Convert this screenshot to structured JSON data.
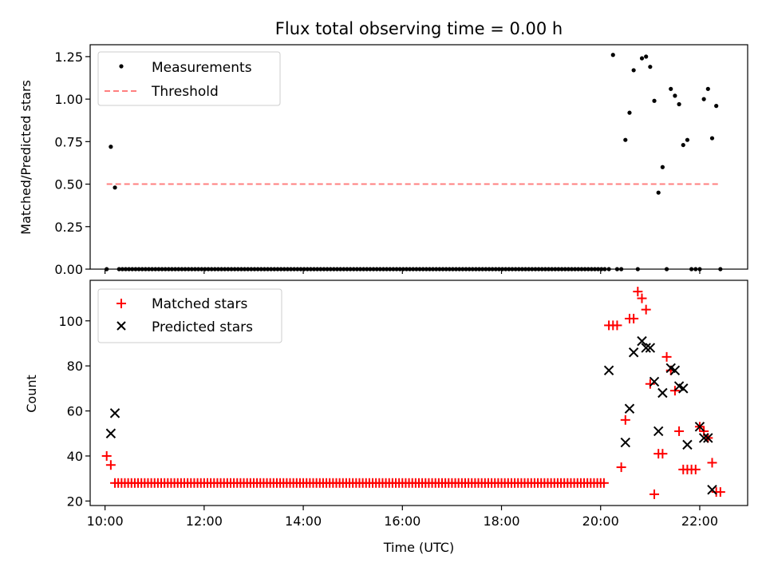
{
  "chart_data": [
    {
      "type": "scatter",
      "title": "Flux total observing time = 0.00 h",
      "xlabel": "",
      "ylabel": "Matched/Predicted stars",
      "xlim": [
        "09:42",
        "22:58"
      ],
      "ylim": [
        0,
        1.32
      ],
      "yticks": [
        0.0,
        0.25,
        0.5,
        0.75,
        1.0,
        1.25
      ],
      "ytick_labels": [
        "0.00",
        "0.25",
        "0.50",
        "0.75",
        "1.00",
        "1.25"
      ],
      "legend_position": "top-left",
      "threshold": {
        "name": "Threshold",
        "value": 0.5,
        "x_range": [
          "10:02",
          "22:22"
        ],
        "color": "#ff7f7f",
        "style": "dashed"
      },
      "series": [
        {
          "name": "Measurements",
          "color": "#000000",
          "marker": "dot",
          "points": [
            [
              "10:02",
              0.0
            ],
            [
              "10:07",
              0.72
            ],
            [
              "10:12",
              0.48
            ],
            [
              "20:05",
              0.0
            ],
            [
              "20:10",
              0.0
            ],
            [
              "20:15",
              1.26
            ],
            [
              "20:20",
              0.0
            ],
            [
              "20:25",
              0.0
            ],
            [
              "20:30",
              0.76
            ],
            [
              "20:35",
              0.92
            ],
            [
              "20:40",
              1.17
            ],
            [
              "20:45",
              0.0
            ],
            [
              "20:50",
              1.24
            ],
            [
              "20:55",
              1.25
            ],
            [
              "21:00",
              1.19
            ],
            [
              "21:05",
              0.99
            ],
            [
              "21:10",
              0.45
            ],
            [
              "21:15",
              0.6
            ],
            [
              "21:20",
              0.0
            ],
            [
              "21:25",
              1.06
            ],
            [
              "21:30",
              1.02
            ],
            [
              "21:35",
              0.97
            ],
            [
              "21:40",
              0.73
            ],
            [
              "21:45",
              0.76
            ],
            [
              "21:50",
              0.0
            ],
            [
              "21:55",
              0.0
            ],
            [
              "22:00",
              0.0
            ],
            [
              "22:05",
              1.0
            ],
            [
              "22:10",
              1.06
            ],
            [
              "22:15",
              0.77
            ],
            [
              "22:20",
              0.96
            ],
            [
              "22:25",
              0.0
            ]
          ],
          "zero_run": {
            "from": "10:17",
            "to": "20:02",
            "step_minutes": 4,
            "value": 0.0
          }
        }
      ]
    },
    {
      "type": "scatter",
      "title": "",
      "xlabel": "Time (UTC)",
      "ylabel": "Count",
      "xlim": [
        "09:42",
        "22:58"
      ],
      "ylim": [
        18,
        118
      ],
      "yticks": [
        20,
        40,
        60,
        80,
        100
      ],
      "ytick_labels": [
        "20",
        "40",
        "60",
        "80",
        "100"
      ],
      "xticks": [
        "10:00",
        "12:00",
        "14:00",
        "16:00",
        "18:00",
        "20:00",
        "22:00"
      ],
      "xtick_labels": [
        "10:00",
        "12:00",
        "14:00",
        "16:00",
        "18:00",
        "20:00",
        "22:00"
      ],
      "legend_position": "top-left",
      "series": [
        {
          "name": "Matched stars",
          "color": "#ff0000",
          "marker": "plus",
          "points": [
            [
              "10:02",
              40
            ],
            [
              "10:07",
              36
            ],
            [
              "20:10",
              98
            ],
            [
              "20:15",
              98
            ],
            [
              "20:20",
              98
            ],
            [
              "20:25",
              35
            ],
            [
              "20:30",
              56
            ],
            [
              "20:35",
              101
            ],
            [
              "20:40",
              101
            ],
            [
              "20:45",
              113
            ],
            [
              "20:50",
              110
            ],
            [
              "20:55",
              105
            ],
            [
              "21:00",
              72
            ],
            [
              "21:05",
              23
            ],
            [
              "21:10",
              41
            ],
            [
              "21:15",
              41
            ],
            [
              "21:20",
              84
            ],
            [
              "21:25",
              78
            ],
            [
              "21:30",
              69
            ],
            [
              "21:35",
              51
            ],
            [
              "21:40",
              34
            ],
            [
              "21:45",
              34
            ],
            [
              "21:50",
              34
            ],
            [
              "21:55",
              34
            ],
            [
              "22:00",
              53
            ],
            [
              "22:05",
              51
            ],
            [
              "22:10",
              48
            ],
            [
              "22:15",
              37
            ],
            [
              "22:20",
              24
            ],
            [
              "22:25",
              24
            ]
          ],
          "flat_run": {
            "from": "10:12",
            "to": "20:06",
            "step_minutes": 4,
            "value": 28
          }
        },
        {
          "name": "Predicted stars",
          "color": "#000000",
          "marker": "x",
          "points": [
            [
              "10:07",
              50
            ],
            [
              "10:12",
              59
            ],
            [
              "20:10",
              78
            ],
            [
              "20:30",
              46
            ],
            [
              "20:35",
              61
            ],
            [
              "20:40",
              86
            ],
            [
              "20:50",
              91
            ],
            [
              "20:55",
              88
            ],
            [
              "21:00",
              88
            ],
            [
              "21:05",
              73
            ],
            [
              "21:10",
              51
            ],
            [
              "21:15",
              68
            ],
            [
              "21:25",
              79
            ],
            [
              "21:30",
              78
            ],
            [
              "21:35",
              71
            ],
            [
              "21:40",
              70
            ],
            [
              "21:45",
              45
            ],
            [
              "22:00",
              53
            ],
            [
              "22:05",
              48
            ],
            [
              "22:10",
              48
            ],
            [
              "22:15",
              25
            ]
          ]
        }
      ]
    }
  ]
}
